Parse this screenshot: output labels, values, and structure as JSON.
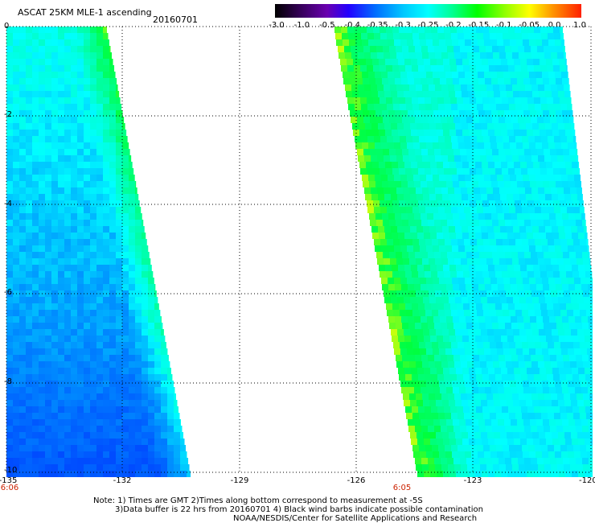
{
  "header": {
    "title": "ASCAT 25KM MLE-1 ascending",
    "date": "20160701"
  },
  "colorbar": {
    "labels": [
      "-3.0",
      "-1.0",
      "-0.5",
      "-0.4",
      "-0.35",
      "-0.3",
      "-0.25",
      "-0.2",
      "-0.15",
      "-0.1",
      "-0.05",
      "0.0",
      "1.0"
    ],
    "colors": [
      "#000000",
      "#3a0060",
      "#6a00b0",
      "#2200ff",
      "#0070ff",
      "#00c8ff",
      "#00ffff",
      "#00ff90",
      "#00ff00",
      "#90ff00",
      "#ffff00",
      "#ff9000",
      "#ff2000"
    ]
  },
  "map": {
    "x_ticks": [
      "-135",
      "-132",
      "-129",
      "-126",
      "-123",
      "-120"
    ],
    "y_ticks": [
      "0",
      "-2",
      "-4",
      "-6",
      "-8",
      "-10"
    ],
    "pass_times": [
      "6:06",
      "6:05"
    ]
  },
  "notes": {
    "line1": "Note: 1) Times are GMT 2)Times along bottom correspond to measurement at -5S",
    "line2": "3)Data buffer is 22 hrs from 20160701 4) Black wind barbs indicate possible contamination",
    "line3": "NOAA/NESDIS/Center for Satellite Applications and Research"
  }
}
